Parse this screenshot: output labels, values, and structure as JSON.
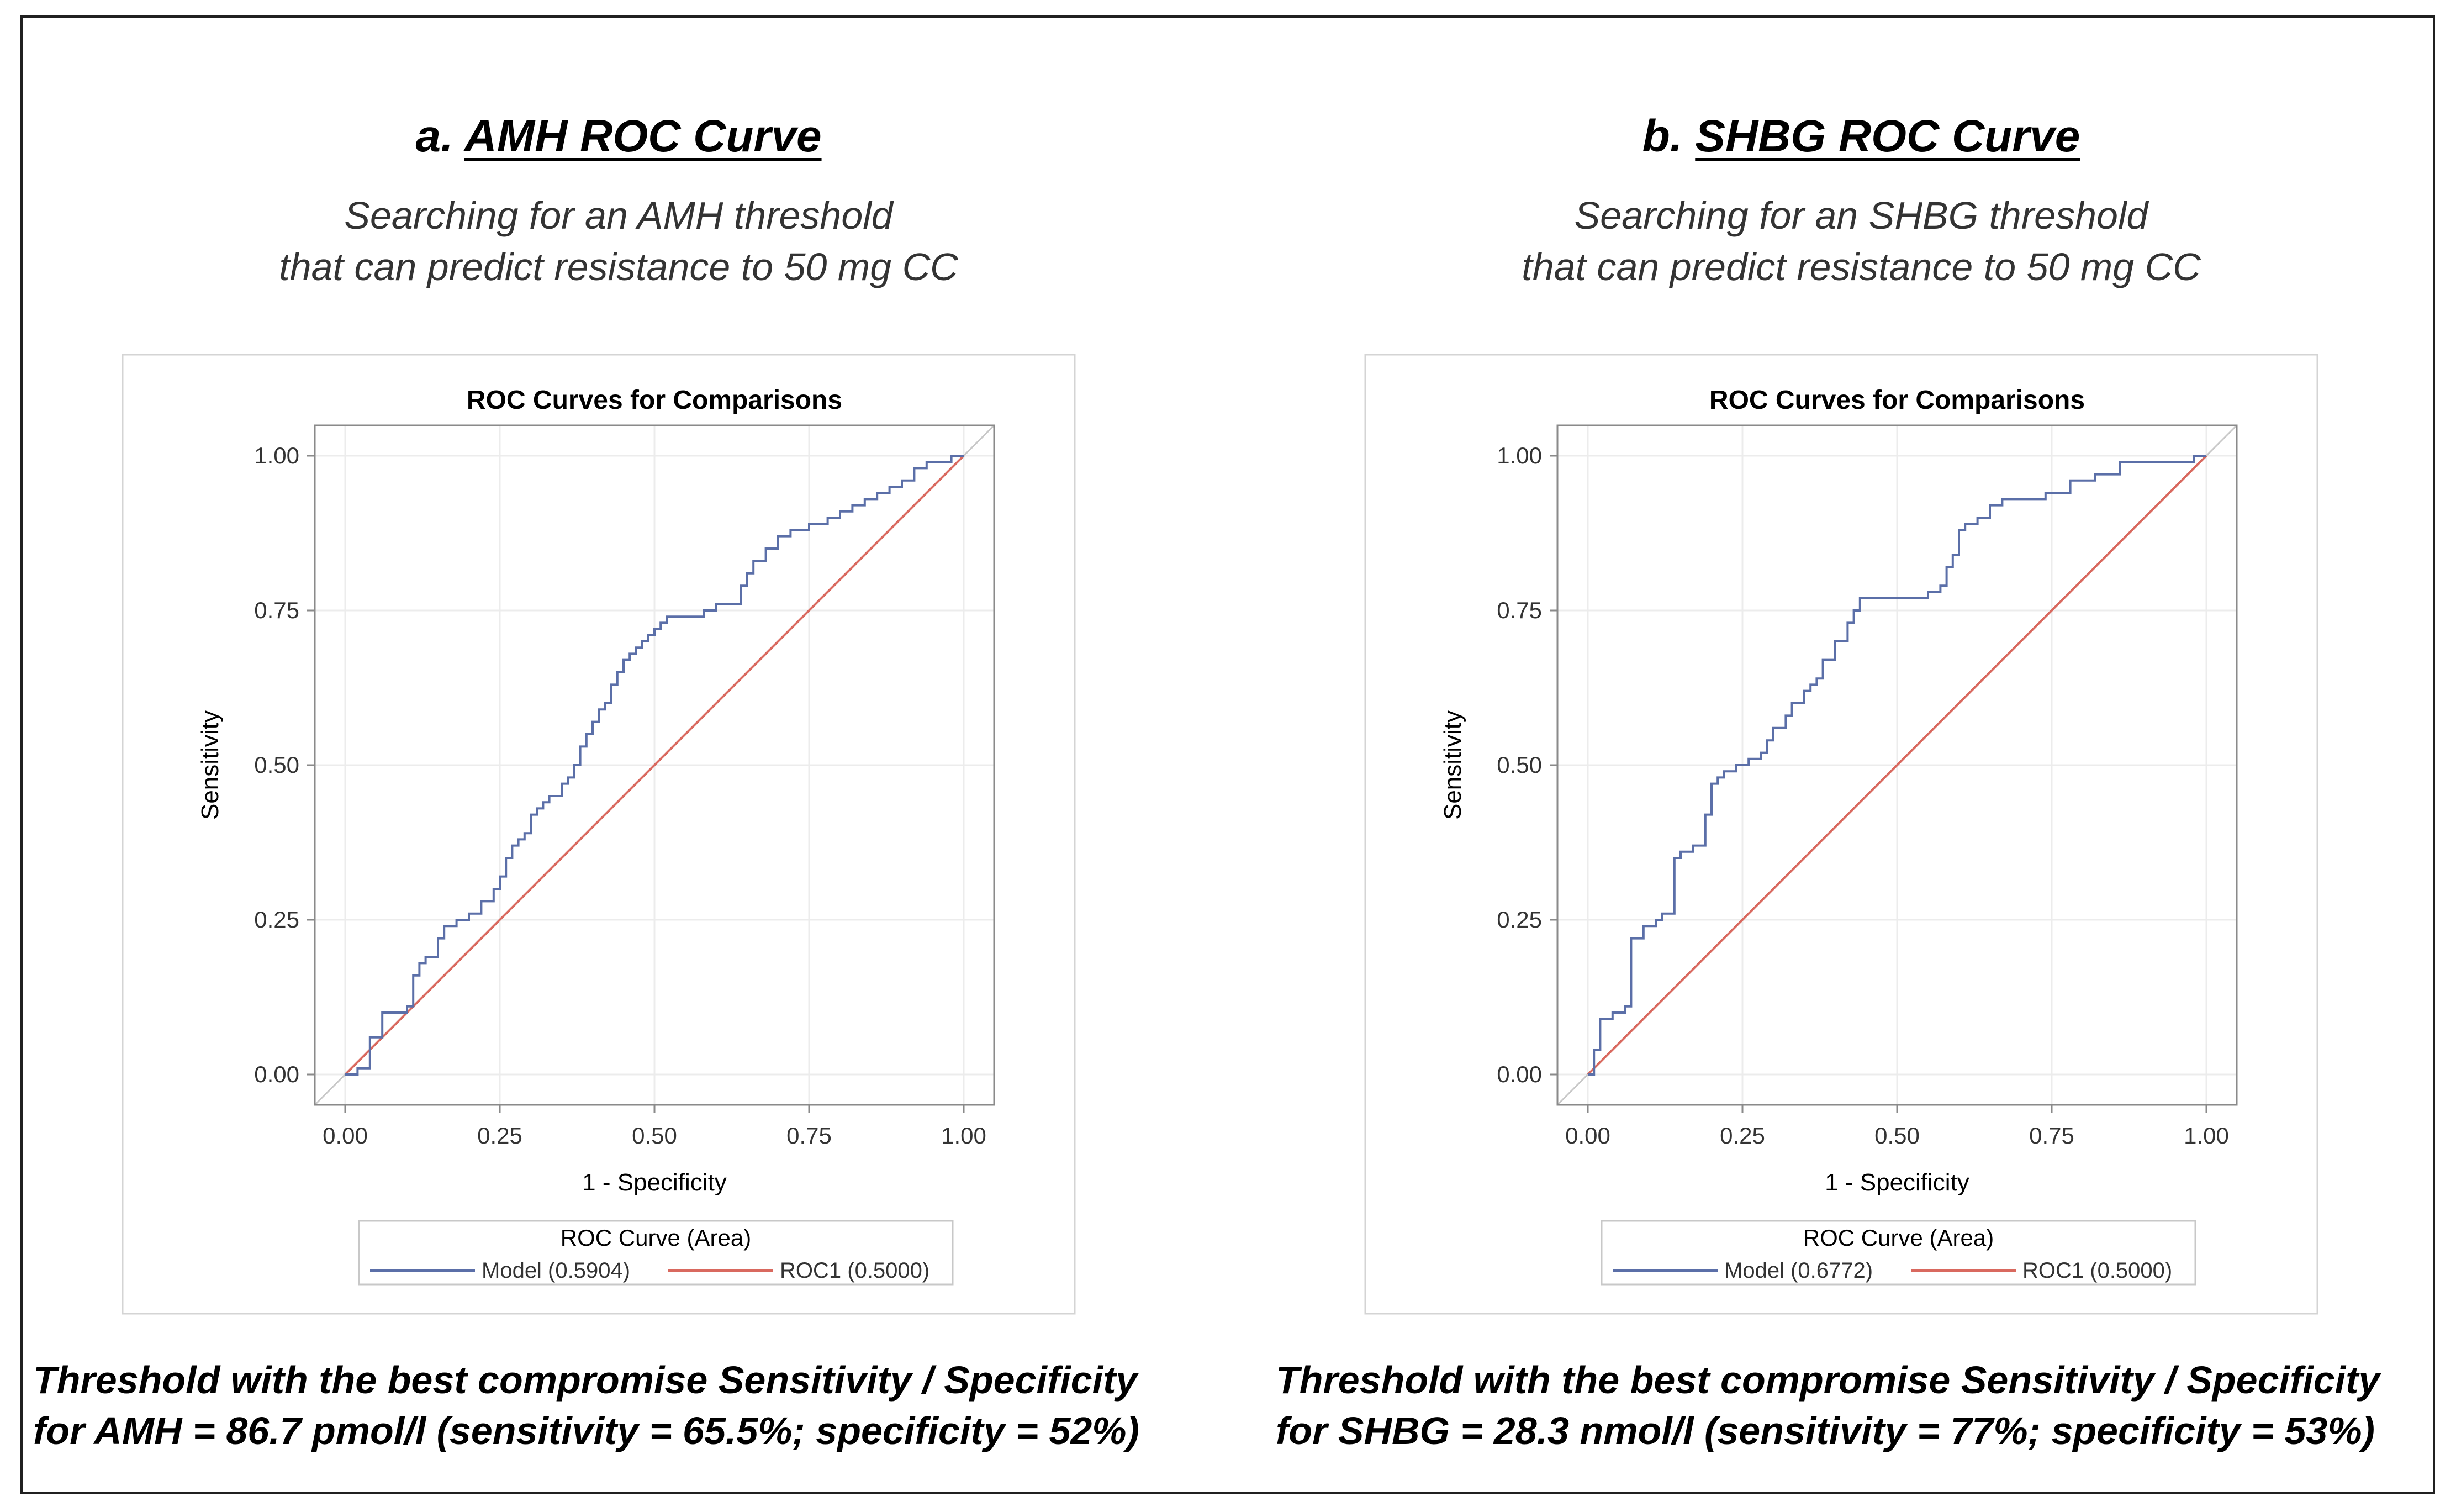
{
  "chart_data": [
    {
      "type": "line",
      "panel_title_prefix": "a.",
      "panel_title": "AMH ROC Curve",
      "subtitle_line1": "Searching for an AMH threshold",
      "subtitle_line2": "that can predict resistance to 50 mg CC",
      "title": "ROC Curves for Comparisons",
      "xlabel": "1 - Specificity",
      "ylabel": "Sensitivity",
      "xlim": [
        0,
        1
      ],
      "ylim": [
        0,
        1
      ],
      "xticks": [
        "0.00",
        "0.25",
        "0.50",
        "0.75",
        "1.00"
      ],
      "yticks": [
        "0.00",
        "0.25",
        "0.50",
        "0.75",
        "1.00"
      ],
      "grid": true,
      "legend_title": "ROC Curve (Area)",
      "legend_placement": "bottom",
      "series": [
        {
          "name": "Model",
          "legend_label": "Model  (0.5904)",
          "color": "#5b6fa8",
          "x": [
            0,
            0.02,
            0.04,
            0.04,
            0.06,
            0.07,
            0.1,
            0.11,
            0.12,
            0.13,
            0.15,
            0.16,
            0.18,
            0.2,
            0.22,
            0.24,
            0.25,
            0.26,
            0.27,
            0.28,
            0.29,
            0.3,
            0.31,
            0.32,
            0.33,
            0.35,
            0.36,
            0.37,
            0.38,
            0.39,
            0.4,
            0.41,
            0.42,
            0.43,
            0.44,
            0.45,
            0.46,
            0.47,
            0.48,
            0.49,
            0.5,
            0.51,
            0.52,
            0.54,
            0.56,
            0.58,
            0.6,
            0.62,
            0.64,
            0.65,
            0.66,
            0.68,
            0.7,
            0.72,
            0.73,
            0.75,
            0.78,
            0.8,
            0.82,
            0.84,
            0.86,
            0.88,
            0.9,
            0.92,
            0.94,
            0.96,
            0.98,
            1.0
          ],
          "y": [
            0,
            0.01,
            0.02,
            0.06,
            0.1,
            0.1,
            0.11,
            0.16,
            0.18,
            0.19,
            0.22,
            0.24,
            0.25,
            0.26,
            0.28,
            0.3,
            0.32,
            0.35,
            0.37,
            0.38,
            0.39,
            0.42,
            0.43,
            0.44,
            0.45,
            0.47,
            0.48,
            0.5,
            0.53,
            0.55,
            0.57,
            0.59,
            0.6,
            0.63,
            0.65,
            0.67,
            0.68,
            0.69,
            0.7,
            0.71,
            0.72,
            0.73,
            0.74,
            0.74,
            0.74,
            0.75,
            0.76,
            0.76,
            0.79,
            0.81,
            0.83,
            0.85,
            0.87,
            0.88,
            0.88,
            0.89,
            0.9,
            0.91,
            0.92,
            0.93,
            0.94,
            0.95,
            0.96,
            0.98,
            0.99,
            0.99,
            1.0,
            1.0
          ]
        },
        {
          "name": "ROC1",
          "legend_label": "ROC1  (0.5000)",
          "color": "#d9695f",
          "x": [
            0,
            1
          ],
          "y": [
            0,
            1
          ]
        }
      ],
      "footer_line1": "Threshold with the best compromise Sensitivity / Specificity",
      "footer_line2": "for AMH = 86.7 pmol/l (sensitivity = 65.5%; specificity = 52%)"
    },
    {
      "type": "line",
      "panel_title_prefix": "b.",
      "panel_title": "SHBG ROC Curve",
      "subtitle_line1": "Searching for an SHBG threshold",
      "subtitle_line2": "that can predict resistance to 50 mg CC",
      "title": "ROC Curves for Comparisons",
      "xlabel": "1 - Specificity",
      "ylabel": "Sensitivity",
      "xlim": [
        0,
        1
      ],
      "ylim": [
        0,
        1
      ],
      "xticks": [
        "0.00",
        "0.25",
        "0.50",
        "0.75",
        "1.00"
      ],
      "yticks": [
        "0.00",
        "0.25",
        "0.50",
        "0.75",
        "1.00"
      ],
      "grid": true,
      "legend_title": "ROC Curve (Area)",
      "legend_placement": "bottom",
      "series": [
        {
          "name": "Model",
          "legend_label": "Model  (0.6772)",
          "color": "#5b6fa8",
          "x": [
            0,
            0.01,
            0.02,
            0.04,
            0.06,
            0.07,
            0.09,
            0.11,
            0.12,
            0.14,
            0.15,
            0.17,
            0.19,
            0.2,
            0.21,
            0.22,
            0.24,
            0.26,
            0.28,
            0.29,
            0.3,
            0.32,
            0.33,
            0.35,
            0.36,
            0.37,
            0.38,
            0.4,
            0.42,
            0.43,
            0.44,
            0.46,
            0.47,
            0.49,
            0.52,
            0.55,
            0.57,
            0.58,
            0.59,
            0.6,
            0.61,
            0.63,
            0.65,
            0.67,
            0.7,
            0.74,
            0.78,
            0.82,
            0.86,
            0.9,
            0.94,
            0.98,
            1.0
          ],
          "y": [
            0,
            0.04,
            0.09,
            0.1,
            0.11,
            0.22,
            0.24,
            0.25,
            0.26,
            0.35,
            0.36,
            0.37,
            0.42,
            0.47,
            0.48,
            0.49,
            0.5,
            0.51,
            0.52,
            0.54,
            0.56,
            0.58,
            0.6,
            0.62,
            0.63,
            0.64,
            0.67,
            0.7,
            0.73,
            0.75,
            0.77,
            0.77,
            0.77,
            0.77,
            0.77,
            0.78,
            0.79,
            0.82,
            0.84,
            0.88,
            0.89,
            0.9,
            0.92,
            0.93,
            0.93,
            0.94,
            0.96,
            0.97,
            0.99,
            0.99,
            0.99,
            1.0,
            1.0
          ]
        },
        {
          "name": "ROC1",
          "legend_label": "ROC1  (0.5000)",
          "color": "#d9695f",
          "x": [
            0,
            1
          ],
          "y": [
            0,
            1
          ]
        }
      ],
      "footer_line1": "Threshold with the best compromise Sensitivity / Specificity",
      "footer_line2": "for SHBG = 28.3 nmol/l (sensitivity = 77%; specificity = 53%)"
    }
  ]
}
